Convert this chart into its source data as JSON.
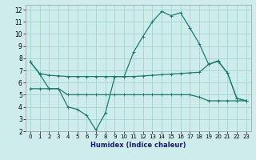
{
  "xlabel": "Humidex (Indice chaleur)",
  "xlim": [
    -0.5,
    23.5
  ],
  "ylim": [
    2,
    12.4
  ],
  "xticks": [
    0,
    1,
    2,
    3,
    4,
    5,
    6,
    7,
    8,
    9,
    10,
    11,
    12,
    13,
    14,
    15,
    16,
    17,
    18,
    19,
    20,
    21,
    22,
    23
  ],
  "yticks": [
    2,
    3,
    4,
    5,
    6,
    7,
    8,
    9,
    10,
    11,
    12
  ],
  "bg_color": "#ceecea",
  "grid_color": "#a8d8d4",
  "line_color": "#1e7b72",
  "line1_x": [
    0,
    1,
    2,
    3,
    4,
    5,
    6,
    7,
    8,
    9,
    10,
    11,
    12,
    13,
    14,
    15,
    16,
    17,
    18,
    19,
    20,
    21,
    22,
    23
  ],
  "line1_y": [
    7.7,
    6.7,
    5.5,
    5.5,
    4.0,
    3.8,
    3.3,
    2.1,
    3.5,
    6.5,
    6.5,
    8.5,
    9.8,
    11.0,
    11.85,
    11.5,
    11.75,
    10.5,
    9.2,
    7.5,
    7.8,
    6.8,
    4.7,
    4.5
  ],
  "line2_x": [
    0,
    1,
    2,
    3,
    4,
    5,
    6,
    7,
    8,
    9,
    10,
    11,
    12,
    13,
    14,
    15,
    16,
    17,
    18,
    19,
    20,
    21,
    22,
    23
  ],
  "line2_y": [
    7.7,
    6.75,
    6.6,
    6.55,
    6.5,
    6.5,
    6.5,
    6.5,
    6.5,
    6.5,
    6.5,
    6.5,
    6.55,
    6.6,
    6.65,
    6.7,
    6.75,
    6.8,
    6.85,
    7.5,
    7.75,
    6.8,
    4.7,
    4.5
  ],
  "line3_x": [
    0,
    1,
    2,
    3,
    4,
    5,
    6,
    7,
    8,
    9,
    10,
    11,
    12,
    13,
    14,
    15,
    16,
    17,
    18,
    19,
    20,
    21,
    22,
    23
  ],
  "line3_y": [
    5.5,
    5.5,
    5.5,
    5.5,
    5.0,
    5.0,
    5.0,
    5.0,
    5.0,
    5.0,
    5.0,
    5.0,
    5.0,
    5.0,
    5.0,
    5.0,
    5.0,
    5.0,
    4.8,
    4.5,
    4.5,
    4.5,
    4.5,
    4.5
  ]
}
